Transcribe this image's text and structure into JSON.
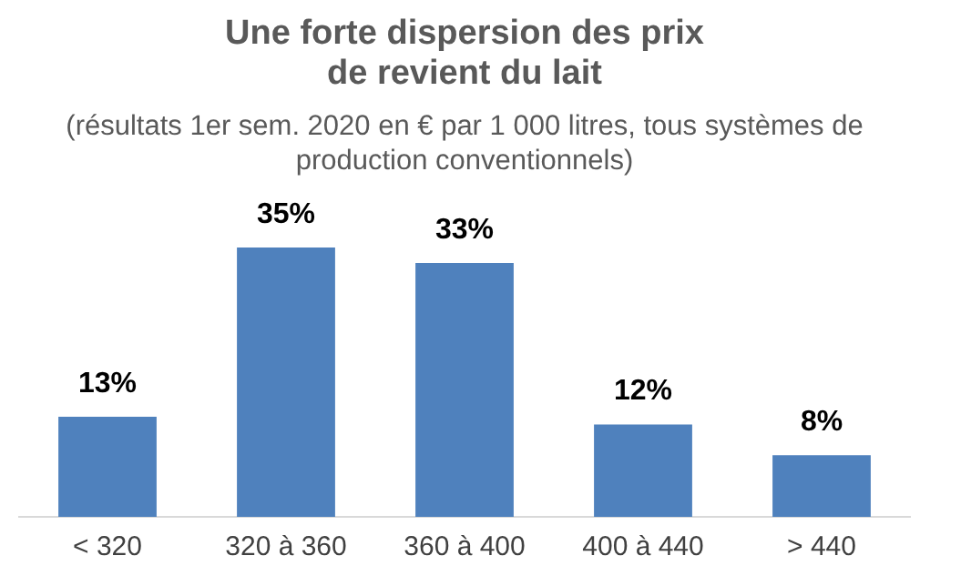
{
  "chart_data": {
    "type": "bar",
    "title": "Une forte dispersion des prix de revient du lait",
    "subtitle": "(résultats 1er sem. 2020 en € par 1 000 litres, tous systèmes de production conventionnels)",
    "categories": [
      "< 320",
      "320 à 360",
      "360 à 400",
      "400 à 440",
      "> 440"
    ],
    "values": [
      13,
      35,
      33,
      12,
      8
    ],
    "value_labels": [
      "13%",
      "35%",
      "33%",
      "12%",
      "8%"
    ],
    "color": "#4f81bd",
    "grid": false,
    "legend": false
  }
}
